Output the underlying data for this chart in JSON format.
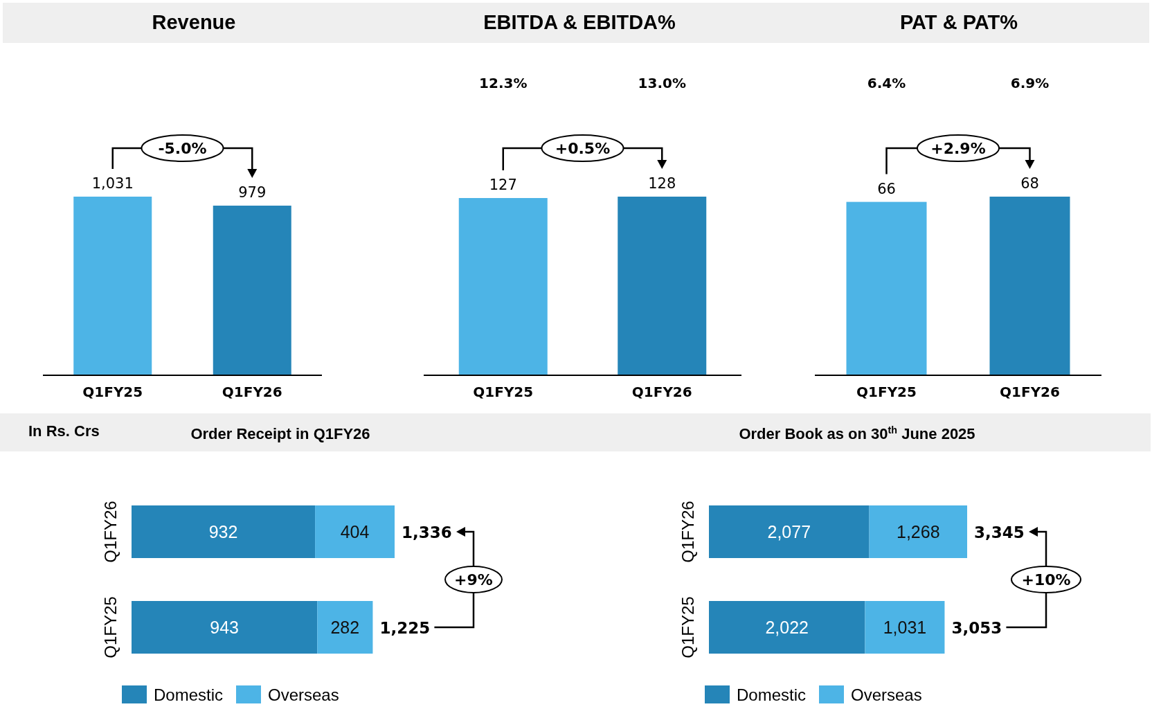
{
  "chart_data": [
    {
      "type": "bar",
      "title": "Revenue",
      "categories": [
        "Q1FY25",
        "Q1FY26"
      ],
      "values": [
        1031,
        979
      ],
      "colors": [
        "#4db4e6",
        "#2585b8"
      ],
      "value_labels": [
        "1,031",
        "979"
      ],
      "annotations": [
        "-5.0%"
      ]
    },
    {
      "type": "bar",
      "title": "EBITDA & EBITDA%",
      "categories": [
        "Q1FY25",
        "Q1FY26"
      ],
      "values": [
        127,
        128
      ],
      "colors": [
        "#4db4e6",
        "#2585b8"
      ],
      "data_labels": true,
      "annotations": [
        "12.3%",
        "13.0%",
        "+0.5%"
      ]
    },
    {
      "type": "bar",
      "title": "PAT & PAT%",
      "categories": [
        "Q1FY25",
        "Q1FY26"
      ],
      "values": [
        66,
        68
      ],
      "colors": [
        "#4db4e6",
        "#2585b8"
      ],
      "data_labels": true,
      "annotations": [
        "6.4%",
        "6.9%",
        "+2.9%"
      ]
    },
    {
      "type": "bar",
      "title": "Order Receipt in Q1FY26",
      "orientation": "horizontal",
      "stacked": true,
      "categories": [
        "Q1FY26",
        "Q1FY25"
      ],
      "series": [
        {
          "name": "Domestic",
          "color": "#2585b8",
          "values": [
            932,
            943
          ]
        },
        {
          "name": "Overseas",
          "color": "#4db4e6",
          "values": [
            404,
            282
          ]
        }
      ],
      "totals": [
        "1,336",
        "1,225"
      ],
      "data_labels": true,
      "legend": "bottom",
      "annotations": [
        "In Rs. Crs",
        "+9%"
      ]
    },
    {
      "type": "bar",
      "title": "Order Book as on 30$^{th}$ June 2025",
      "orientation": "horizontal",
      "stacked": true,
      "categories": [
        "Q1FY26",
        "Q1FY25"
      ],
      "series": [
        {
          "name": "Domestic",
          "color": "#2585b8",
          "values": [
            2077,
            2022
          ],
          "value_labels": [
            "2,077",
            "2,022"
          ]
        },
        {
          "name": "Overseas",
          "color": "#4db4e6",
          "values": [
            1268,
            1031
          ],
          "value_labels": [
            "1,268",
            "1,031"
          ]
        }
      ],
      "totals": [
        "3,345",
        "3,053"
      ],
      "legend": "bottom",
      "annotations": [
        "+10%"
      ]
    }
  ]
}
